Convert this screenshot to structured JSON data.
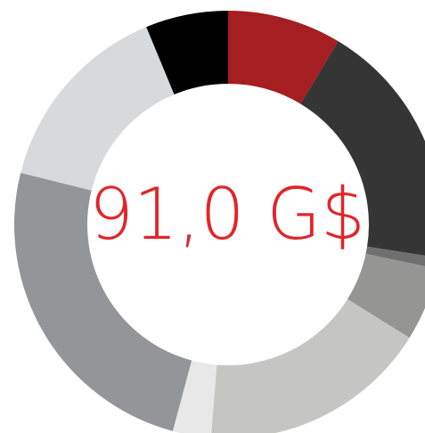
{
  "chart_data": {
    "type": "donut",
    "center_text": "91,0 G$",
    "center_color": "#e0262b",
    "categories": [
      null,
      null,
      null,
      null,
      null,
      null,
      null,
      null,
      null
    ],
    "values": [
      31,
      68,
      3,
      20,
      62.6,
      10.4,
      89,
      53.5,
      22.5
    ],
    "colors": [
      "#a51e22",
      "#353535",
      "#6e706f",
      "#959593",
      "#c5c5c3",
      "#e8e8e8",
      "#939598",
      "#d8d9db",
      "#000000"
    ]
  }
}
